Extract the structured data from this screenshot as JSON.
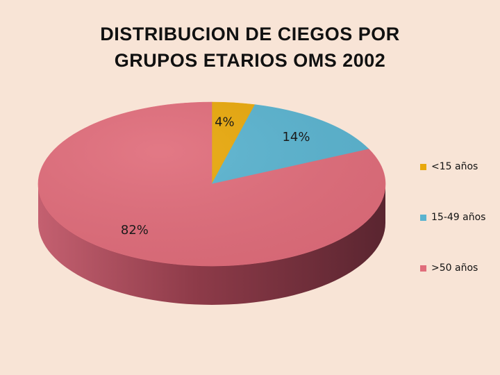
{
  "chart_data": {
    "type": "pie",
    "title_lines": [
      "DISTRIBUCION DE CIEGOS POR",
      "GRUPOS ETARIOS OMS 2002"
    ],
    "slices": [
      {
        "label": "<15 años",
        "value": 4,
        "data_label": "4%",
        "color": "#e8a80c"
      },
      {
        "label": "15-49 años",
        "value": 14,
        "data_label": "14%",
        "color": "#5ab3cf"
      },
      {
        "label": ">50 años",
        "value": 82,
        "data_label": "82%",
        "color": "#e06d7b"
      }
    ],
    "legend_position": "right",
    "style": "3d"
  }
}
